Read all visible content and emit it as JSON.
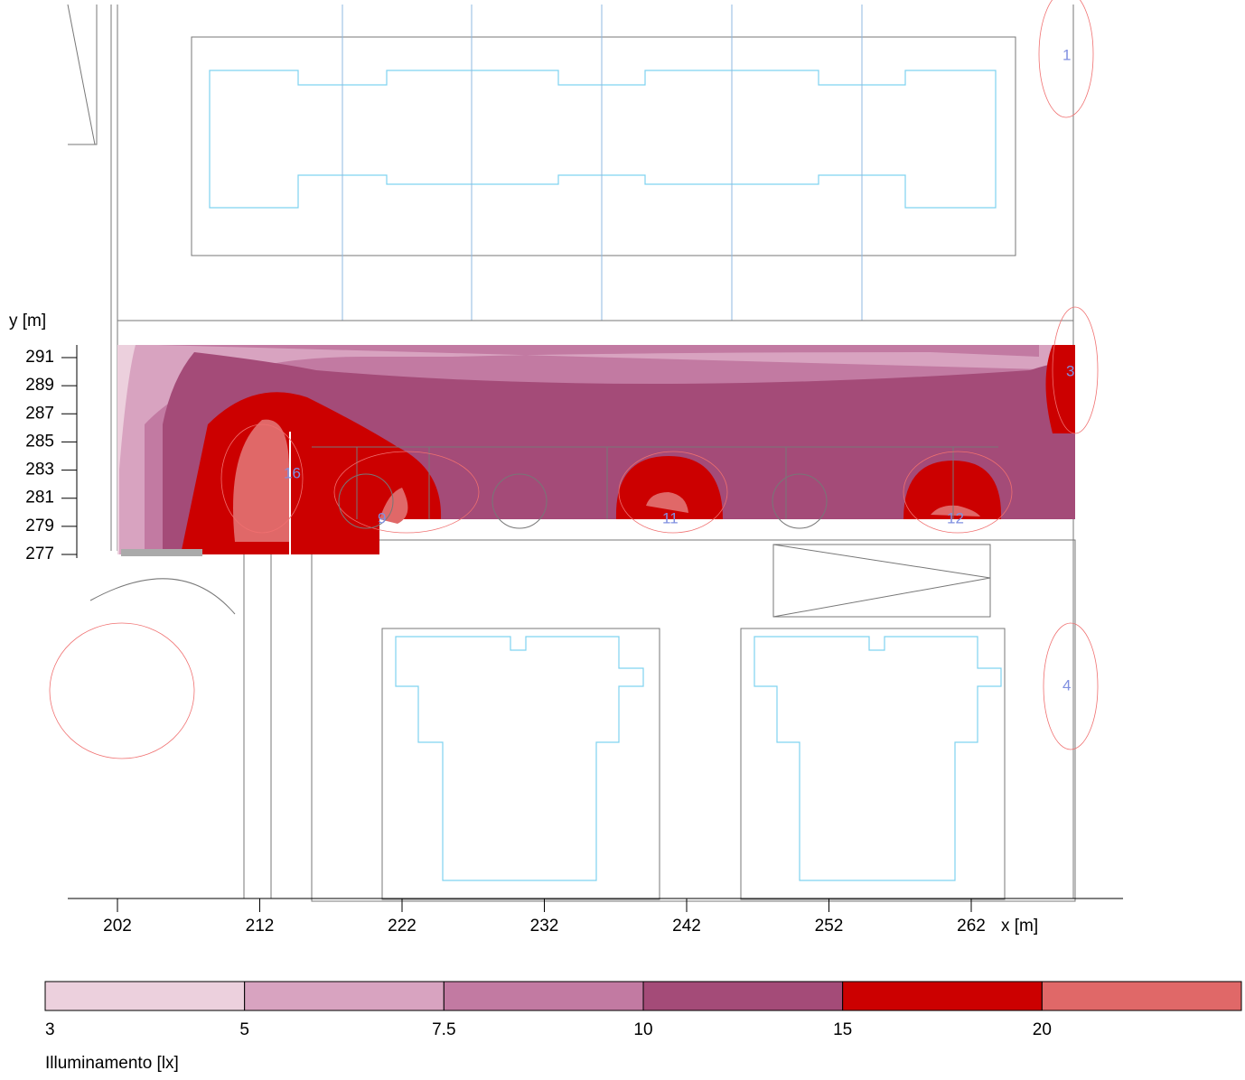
{
  "chart_data": {
    "type": "map",
    "xlabel": "x [m]",
    "ylabel": "y [m]",
    "xlim": [
      202,
      262
    ],
    "ylim": [
      277,
      291
    ],
    "xticks": [
      202,
      212,
      222,
      232,
      242,
      252,
      262
    ],
    "yticks": [
      277,
      279,
      281,
      283,
      285,
      287,
      289,
      291
    ],
    "legend": {
      "title": "Illuminamento [lx]",
      "levels": [
        3,
        5,
        7.5,
        10,
        15,
        20
      ],
      "colors": [
        "#ecd0dd",
        "#d8a3c0",
        "#c27aa2",
        "#a44b78",
        "#cc0000",
        "#e06868"
      ]
    },
    "luminaires": [
      "1",
      "3",
      "4",
      "9",
      "11",
      "12",
      "16"
    ]
  }
}
